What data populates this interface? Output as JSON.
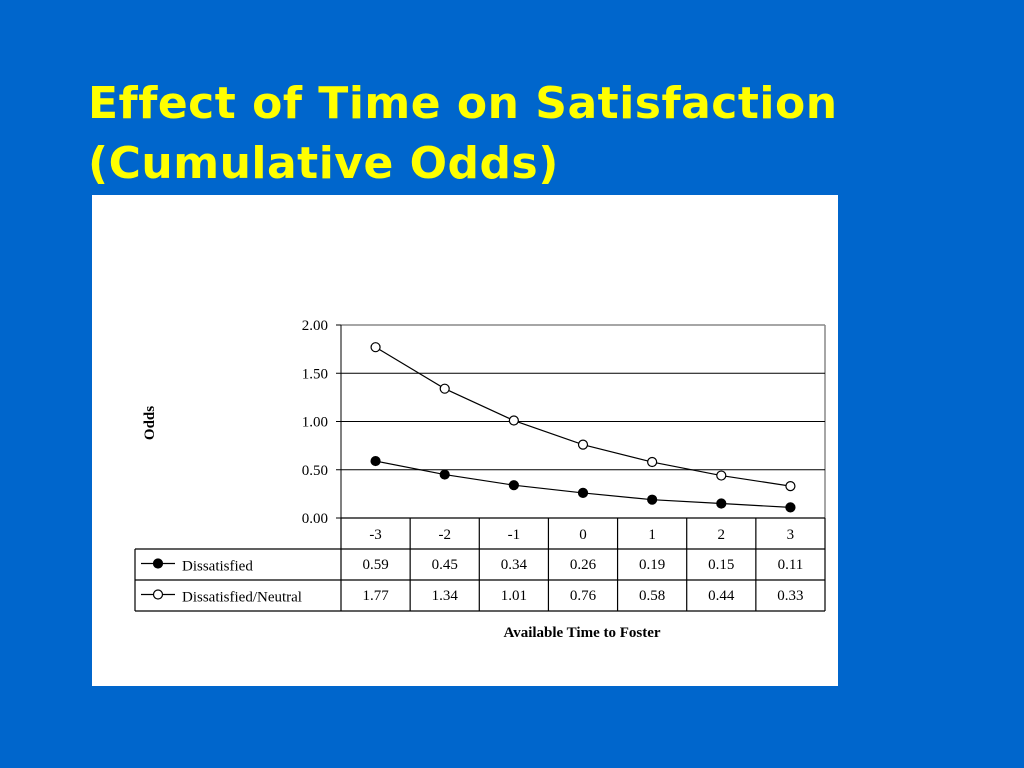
{
  "slide": {
    "title_line1": "Effect of Time on Satisfaction",
    "title_line2": "(Cumulative Odds)"
  },
  "chart_data": {
    "type": "line",
    "title": "",
    "xlabel": "Available Time to Foster",
    "ylabel": "Odds",
    "categories": [
      "-3",
      "-2",
      "-1",
      "0",
      "1",
      "2",
      "3"
    ],
    "y_ticks": [
      "0.00",
      "0.50",
      "1.00",
      "1.50",
      "2.00"
    ],
    "ylim": [
      0,
      2
    ],
    "grid": "horizontal",
    "legend": "data-table",
    "series": [
      {
        "name": "Dissatisfied",
        "marker": "filled-circle",
        "values": [
          0.59,
          0.45,
          0.34,
          0.26,
          0.19,
          0.15,
          0.11
        ],
        "labels": [
          "0.59",
          "0.45",
          "0.34",
          "0.26",
          "0.19",
          "0.15",
          "0.11"
        ]
      },
      {
        "name": "Dissatisfied/Neutral",
        "marker": "open-circle",
        "values": [
          1.77,
          1.34,
          1.01,
          0.76,
          0.58,
          0.44,
          0.33
        ],
        "labels": [
          "1.77",
          "1.34",
          "1.01",
          "0.76",
          "0.58",
          "0.44",
          "0.33"
        ]
      }
    ]
  },
  "colors": {
    "background": "#0066CC",
    "title": "#FFFF00",
    "panel": "#FFFFFF",
    "ink": "#000000"
  }
}
